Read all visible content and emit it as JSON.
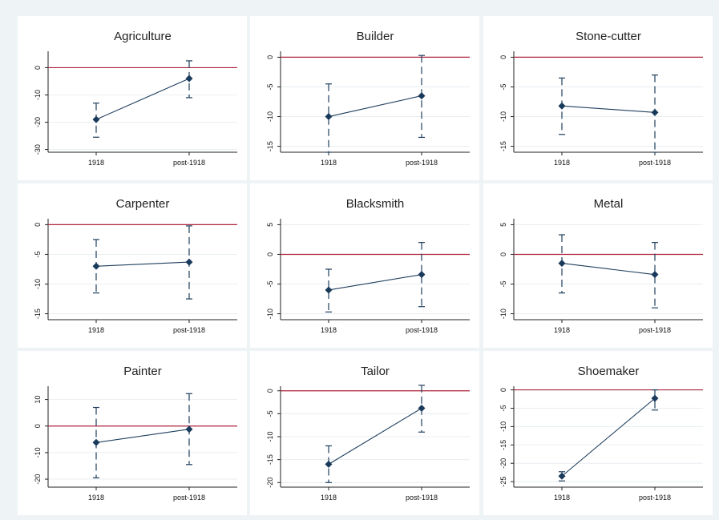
{
  "colors": {
    "background": "#eef3f5",
    "panel": "#ffffff",
    "reference_line": "#b0243d",
    "series": "#1a3a5c"
  },
  "chart_data": [
    {
      "type": "scatter",
      "title": "Agriculture",
      "categories": [
        "1918",
        "post-1918"
      ],
      "yticks": [
        0,
        -10,
        -20,
        -30
      ],
      "ylim": [
        -31,
        6
      ],
      "reference_line": 0,
      "grid": true,
      "series": [
        {
          "values": [
            -19,
            -4
          ],
          "ci_low": [
            -25.5,
            -11
          ],
          "ci_high": [
            -13,
            2.5
          ]
        }
      ]
    },
    {
      "type": "scatter",
      "title": "Builder",
      "categories": [
        "1918",
        "post-1918"
      ],
      "yticks": [
        0,
        -5,
        -10,
        -15
      ],
      "ylim": [
        -16,
        1
      ],
      "reference_line": 0,
      "grid": true,
      "series": [
        {
          "values": [
            -10,
            -6.5
          ],
          "ci_low": [
            -16,
            -13.5
          ],
          "ci_high": [
            -4.5,
            0.3
          ]
        }
      ]
    },
    {
      "type": "scatter",
      "title": "Stone-cutter",
      "categories": [
        "1918",
        "post-1918"
      ],
      "yticks": [
        0,
        -5,
        -10,
        -15
      ],
      "ylim": [
        -16,
        1
      ],
      "reference_line": 0,
      "grid": true,
      "series": [
        {
          "values": [
            -8.2,
            -9.3
          ],
          "ci_low": [
            -13,
            -16
          ],
          "ci_high": [
            -3.5,
            -3
          ]
        }
      ]
    },
    {
      "type": "scatter",
      "title": "Carpenter",
      "categories": [
        "1918",
        "post-1918"
      ],
      "yticks": [
        0,
        -5,
        -10,
        -15
      ],
      "ylim": [
        -16,
        1
      ],
      "reference_line": 0,
      "grid": true,
      "series": [
        {
          "values": [
            -7,
            -6.3
          ],
          "ci_low": [
            -11.5,
            -12.5
          ],
          "ci_high": [
            -2.5,
            -0.2
          ]
        }
      ]
    },
    {
      "type": "scatter",
      "title": "Blacksmith",
      "categories": [
        "1918",
        "post-1918"
      ],
      "yticks": [
        5,
        0,
        -5,
        -10
      ],
      "ylim": [
        -11,
        6
      ],
      "reference_line": 0,
      "grid": true,
      "series": [
        {
          "values": [
            -6,
            -3.4
          ],
          "ci_low": [
            -9.7,
            -8.8
          ],
          "ci_high": [
            -2.5,
            2
          ]
        }
      ]
    },
    {
      "type": "scatter",
      "title": "Metal",
      "categories": [
        "1918",
        "post-1918"
      ],
      "yticks": [
        5,
        0,
        -5,
        -10
      ],
      "ylim": [
        -11,
        6
      ],
      "reference_line": 0,
      "grid": true,
      "series": [
        {
          "values": [
            -1.5,
            -3.4
          ],
          "ci_low": [
            -6.5,
            -9
          ],
          "ci_high": [
            3.3,
            2
          ]
        }
      ]
    },
    {
      "type": "scatter",
      "title": "Painter",
      "categories": [
        "1918",
        "post-1918"
      ],
      "yticks": [
        10,
        0,
        -10,
        -20
      ],
      "ylim": [
        -23,
        15
      ],
      "reference_line": 0,
      "grid": true,
      "series": [
        {
          "values": [
            -6.2,
            -1.2
          ],
          "ci_low": [
            -19.5,
            -14.5
          ],
          "ci_high": [
            7,
            12.2
          ]
        }
      ]
    },
    {
      "type": "scatter",
      "title": "Tailor",
      "categories": [
        "1918",
        "post-1918"
      ],
      "yticks": [
        0,
        -5,
        -10,
        -15,
        -20
      ],
      "ylim": [
        -21,
        1
      ],
      "reference_line": 0,
      "grid": true,
      "series": [
        {
          "values": [
            -16,
            -3.8
          ],
          "ci_low": [
            -20,
            -9
          ],
          "ci_high": [
            -12,
            1.2
          ]
        }
      ]
    },
    {
      "type": "scatter",
      "title": "Shoemaker",
      "categories": [
        "1918",
        "post-1918"
      ],
      "yticks": [
        0,
        -5,
        -10,
        -15,
        -20,
        -25
      ],
      "ylim": [
        -26.5,
        1
      ],
      "reference_line": 0,
      "grid": true,
      "series": [
        {
          "values": [
            -23.5,
            -2.3
          ],
          "ci_low": [
            -24.8,
            -5.5
          ],
          "ci_high": [
            -22.3,
            0
          ]
        }
      ]
    }
  ]
}
